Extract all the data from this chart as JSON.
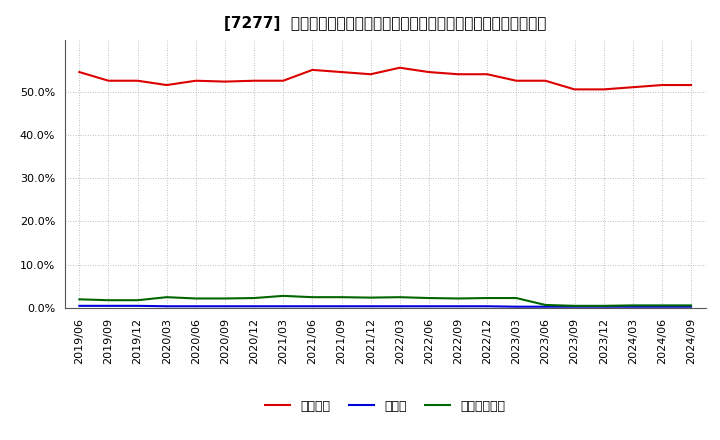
{
  "title": "[7277]  自己資本、のれん、繰延税金資産の総資産に対する比率の推移",
  "x_labels": [
    "2019/06",
    "2019/09",
    "2019/12",
    "2020/03",
    "2020/06",
    "2020/09",
    "2020/12",
    "2021/03",
    "2021/06",
    "2021/09",
    "2021/12",
    "2022/03",
    "2022/06",
    "2022/09",
    "2022/12",
    "2023/03",
    "2023/06",
    "2023/09",
    "2023/12",
    "2024/03",
    "2024/06",
    "2024/09"
  ],
  "equity": [
    54.5,
    52.5,
    52.5,
    51.5,
    52.5,
    52.3,
    52.5,
    52.5,
    55.0,
    54.5,
    54.0,
    55.5,
    54.5,
    54.0,
    54.0,
    52.5,
    52.5,
    50.5,
    50.5,
    51.0,
    51.5,
    51.5
  ],
  "goodwill": [
    0.5,
    0.5,
    0.5,
    0.4,
    0.4,
    0.4,
    0.4,
    0.4,
    0.4,
    0.4,
    0.4,
    0.4,
    0.4,
    0.4,
    0.4,
    0.3,
    0.3,
    0.3,
    0.3,
    0.3,
    0.3,
    0.3
  ],
  "deferred_tax": [
    2.0,
    1.8,
    1.8,
    2.5,
    2.2,
    2.2,
    2.3,
    2.8,
    2.5,
    2.5,
    2.4,
    2.5,
    2.3,
    2.2,
    2.3,
    2.3,
    0.7,
    0.5,
    0.5,
    0.6,
    0.6,
    0.6
  ],
  "equity_color": "#dd0000",
  "goodwill_color": "#0000dd",
  "deferred_tax_color": "#006600",
  "background_color": "#ffffff",
  "grid_color": "#aaaaaa",
  "ylim": [
    0,
    62
  ],
  "yticks": [
    0,
    10,
    20,
    30,
    40,
    50
  ],
  "legend_labels": [
    "自己資本",
    "のれん",
    "繰延税金資産"
  ],
  "title_fontsize": 11,
  "tick_fontsize": 8
}
